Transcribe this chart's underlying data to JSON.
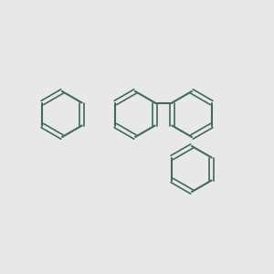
{
  "background_color": "#e8e8e8",
  "bond_color": "#3d6b5e",
  "bond_color_dark": "#3d6b5e",
  "o_color": "#cc2200",
  "n_color": "#2200cc",
  "h_color": "#444444",
  "lw": 1.5,
  "lw_double": 1.2
}
